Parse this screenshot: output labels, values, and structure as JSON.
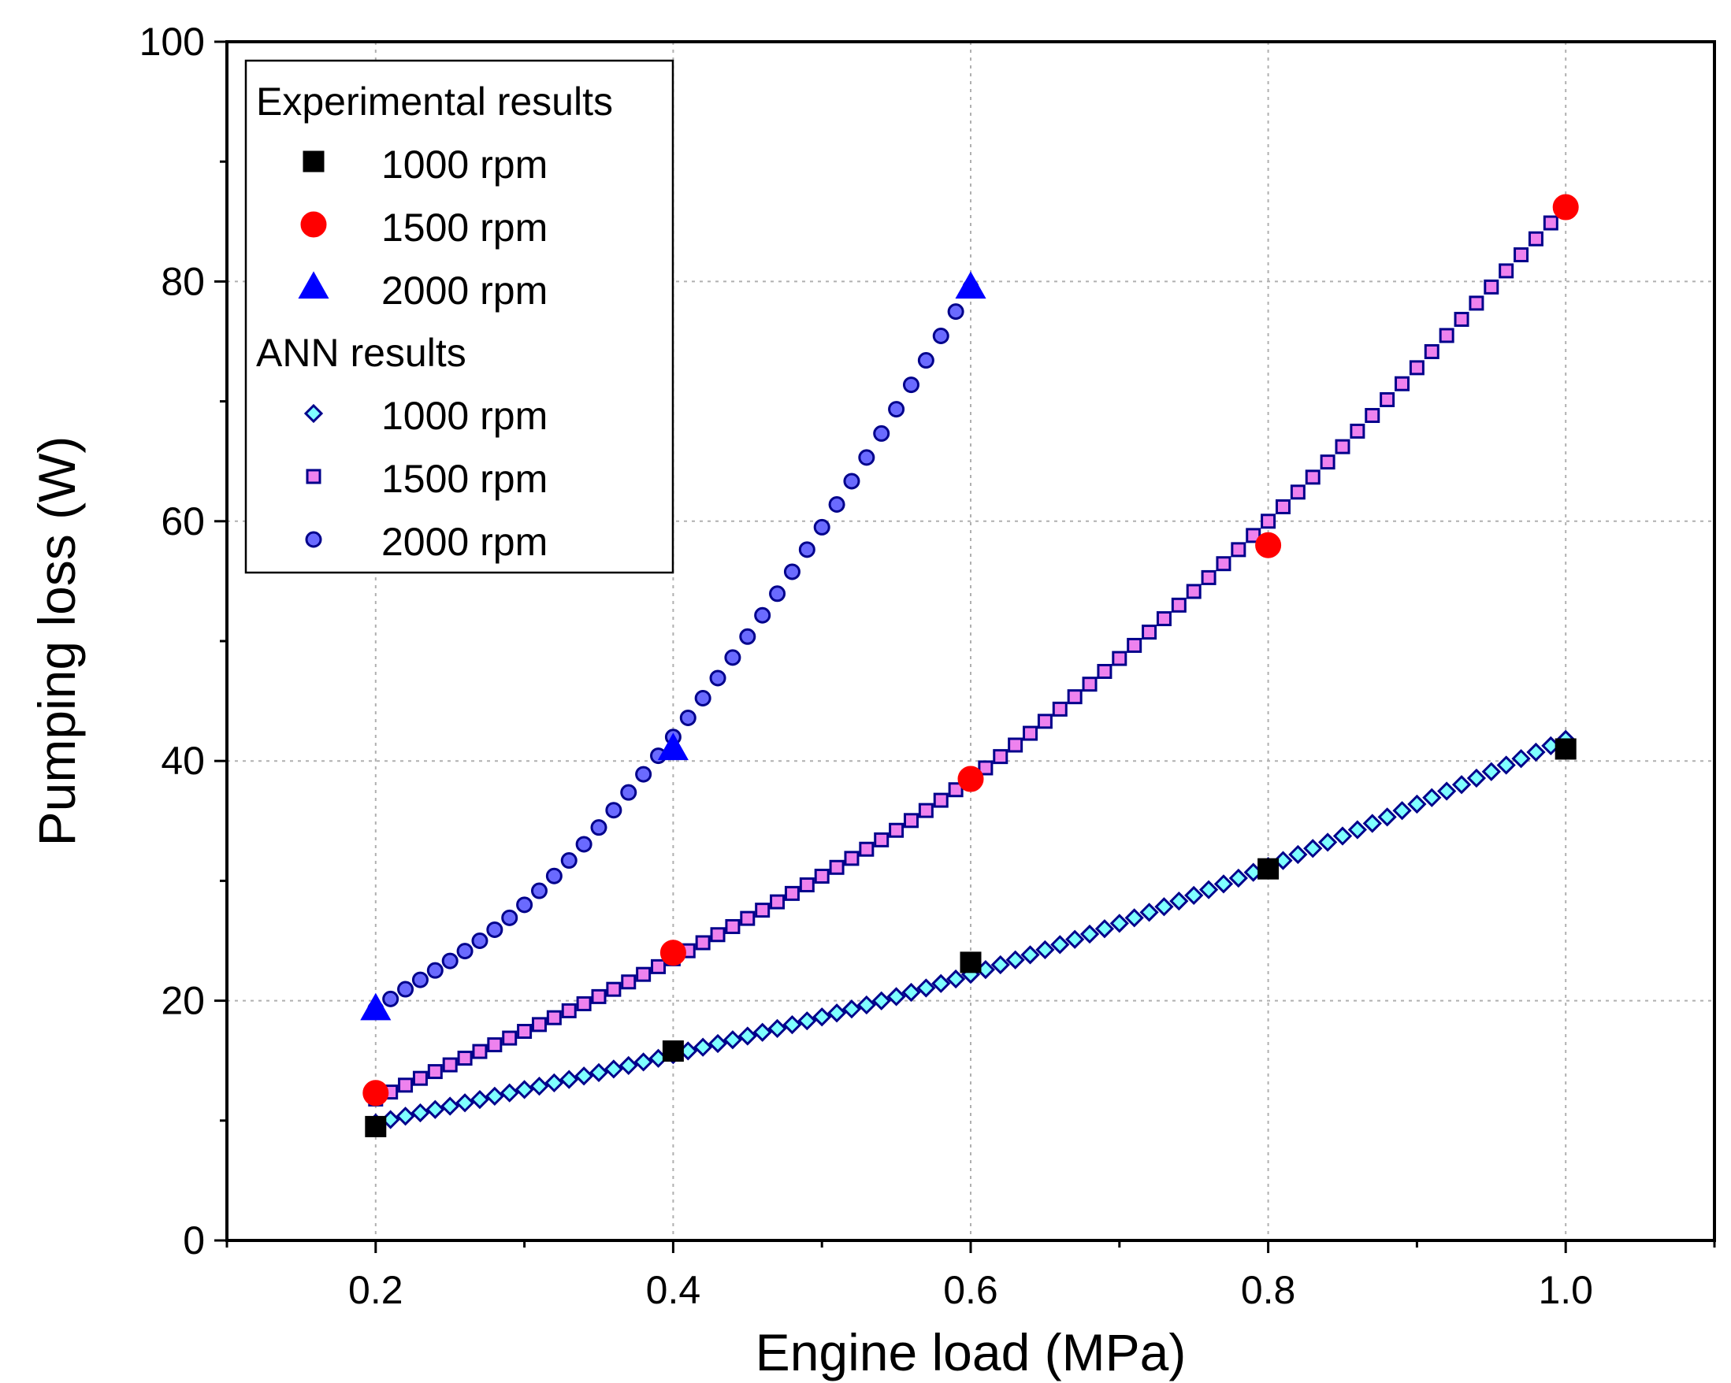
{
  "chart_data": {
    "type": "scatter",
    "title": "",
    "xlabel": "Engine load (MPa)",
    "ylabel": "Pumping loss (W)",
    "xlim": [
      0.1,
      1.1
    ],
    "ylim": [
      0,
      100
    ],
    "xticks": [
      0.2,
      0.4,
      0.6,
      0.8,
      1.0
    ],
    "xtick_labels": [
      "0.2",
      "0.4",
      "0.6",
      "0.8",
      "1.0"
    ],
    "yticks": [
      0,
      20,
      40,
      60,
      80,
      100
    ],
    "ytick_labels": [
      "0",
      "20",
      "40",
      "60",
      "80",
      "100"
    ],
    "grid": true,
    "legend_position": "top-left",
    "legend": {
      "experimental_header": "Experimental results",
      "ann_header": "ANN results"
    },
    "experimental_series": [
      {
        "name": "1000 rpm",
        "marker": "square",
        "color": "#000000",
        "x": [
          0.2,
          0.4,
          0.6,
          0.8,
          1.0
        ],
        "y": [
          9.5,
          15.8,
          23.2,
          31.0,
          41.0
        ]
      },
      {
        "name": "1500 rpm",
        "marker": "circle",
        "color": "#ff0000",
        "x": [
          0.2,
          0.4,
          0.6,
          0.8,
          1.0
        ],
        "y": [
          12.3,
          24.0,
          38.5,
          58.0,
          86.2
        ]
      },
      {
        "name": "2000 rpm",
        "marker": "triangle",
        "color": "#0000ff",
        "x": [
          0.2,
          0.4,
          0.6
        ],
        "y": [
          19.3,
          41.0,
          79.5
        ]
      }
    ],
    "ann_series": [
      {
        "name": "1000 rpm",
        "marker": "diamond",
        "fill": "#7fffff",
        "edge": "#00008b",
        "x_range": [
          0.2,
          1.0
        ],
        "step": 0.01,
        "anchor_x": [
          0.2,
          0.4,
          0.6,
          0.8,
          1.0
        ],
        "anchor_y": [
          9.8,
          15.5,
          22.2,
          31.2,
          41.8
        ]
      },
      {
        "name": "1500 rpm",
        "marker": "square",
        "fill": "#ee82ee",
        "edge": "#00008b",
        "x_range": [
          0.2,
          1.0
        ],
        "step": 0.01,
        "anchor_x": [
          0.2,
          0.4,
          0.6,
          0.8,
          1.0
        ],
        "anchor_y": [
          11.8,
          23.5,
          38.5,
          60.0,
          86.2
        ]
      },
      {
        "name": "2000 rpm",
        "marker": "circle",
        "fill": "#6a6aff",
        "edge": "#00008b",
        "x_range": [
          0.2,
          0.6
        ],
        "step": 0.01,
        "anchor_x": [
          0.2,
          0.3,
          0.4,
          0.5,
          0.6
        ],
        "anchor_y": [
          19.3,
          28.0,
          42.0,
          59.5,
          79.5
        ]
      }
    ]
  }
}
